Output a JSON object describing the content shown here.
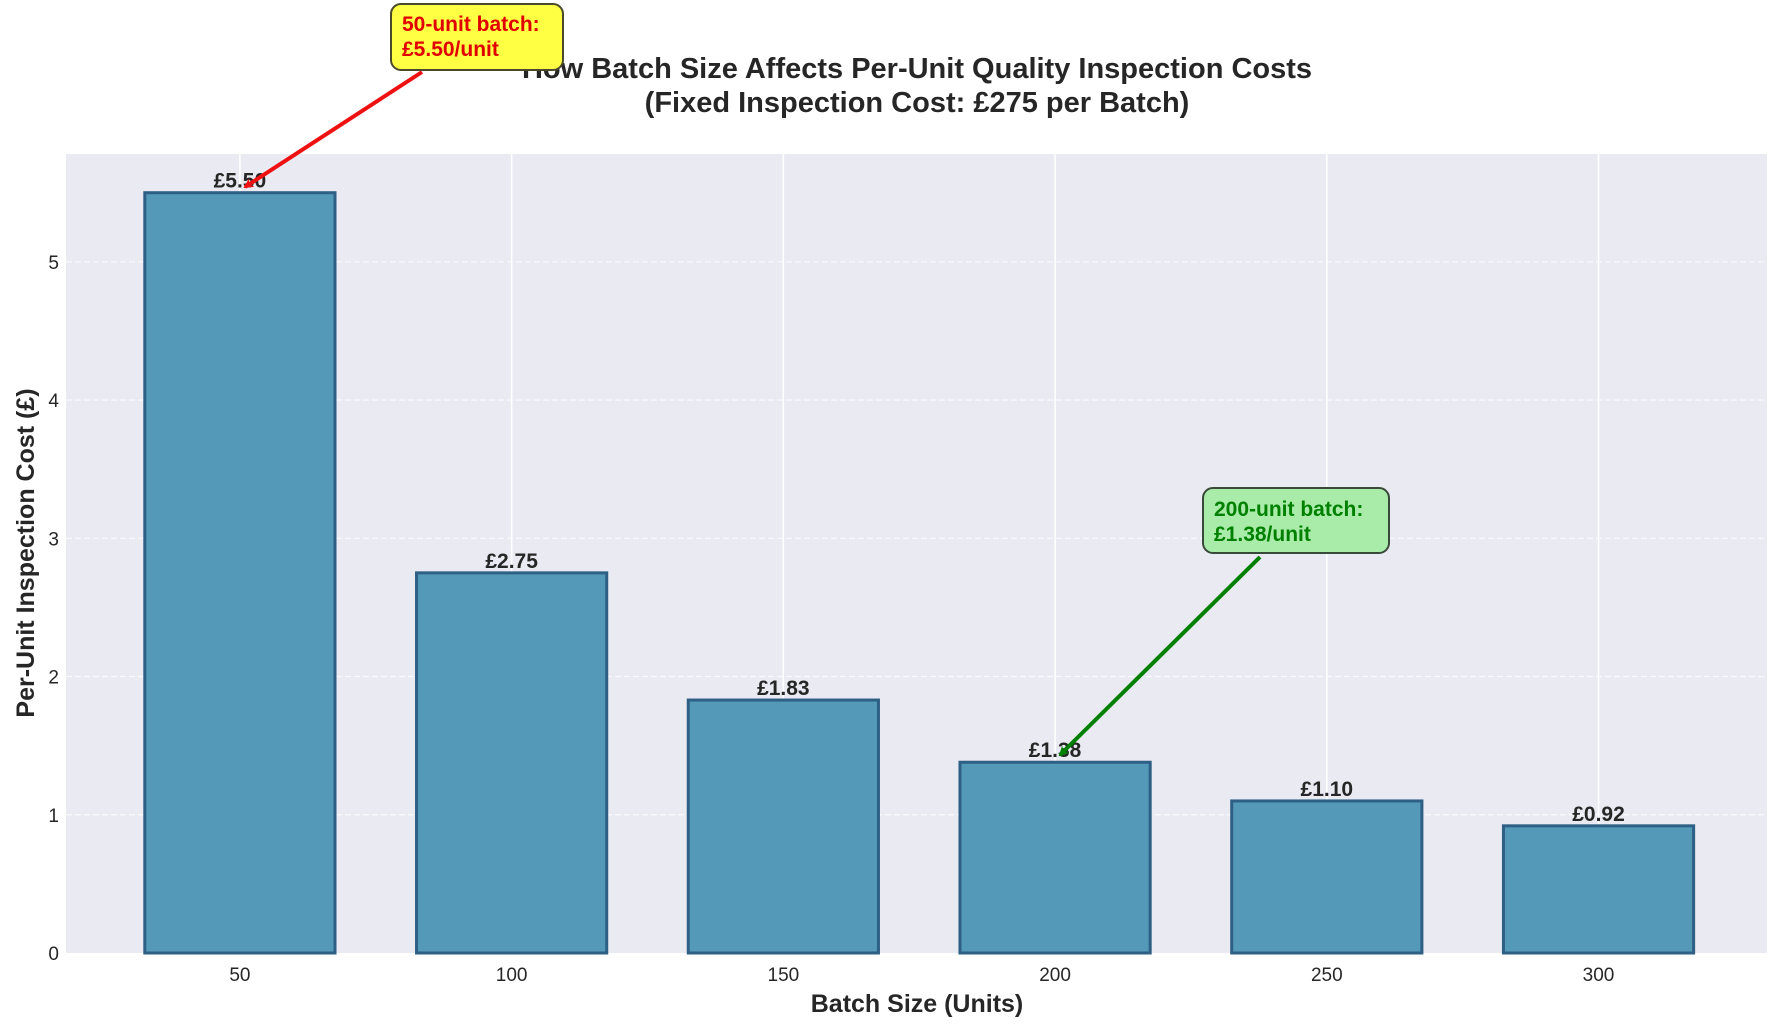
{
  "chart_data": {
    "type": "bar",
    "title": "How Batch Size Affects Per-Unit Quality Inspection Costs",
    "subtitle": "(Fixed Inspection Cost: £275 per Batch)",
    "xlabel": "Batch Size (Units)",
    "ylabel": "Per-Unit Inspection Cost (£)",
    "categories": [
      "50",
      "100",
      "150",
      "200",
      "250",
      "300"
    ],
    "x": [
      50,
      100,
      150,
      200,
      250,
      300
    ],
    "values": [
      5.5,
      2.75,
      1.83,
      1.38,
      1.1,
      0.92
    ],
    "bar_labels": [
      "£5.50",
      "£2.75",
      "£1.83",
      "£1.38",
      "£1.10",
      "£0.92"
    ],
    "ylim": [
      0,
      5.78
    ],
    "xlim": [
      18,
      331
    ],
    "yticks": [
      0,
      1,
      2,
      3,
      4,
      5
    ],
    "xticks": [
      50,
      100,
      150,
      200,
      250,
      300
    ],
    "grid": true,
    "legend": null,
    "annotations": [
      {
        "text_line1": "50-unit batch:",
        "text_line2": "£5.50/unit",
        "target": {
          "x": 50,
          "y": 5.5
        },
        "text_color": "#e00000",
        "box_color": "#ffff44",
        "arrow_color": "#ee1111"
      },
      {
        "text_line1": "200-unit batch:",
        "text_line2": "£1.38/unit",
        "target": {
          "x": 200,
          "y": 1.38
        },
        "text_color": "#008000",
        "box_color": "#a9eca9",
        "arrow_color": "#008000"
      }
    ],
    "colors": {
      "bar_fill": "#5499b8",
      "bar_edge": "#2e5f85",
      "plot_background": "#eaeaf2",
      "grid": "#ffffff",
      "text": "#262626"
    }
  }
}
